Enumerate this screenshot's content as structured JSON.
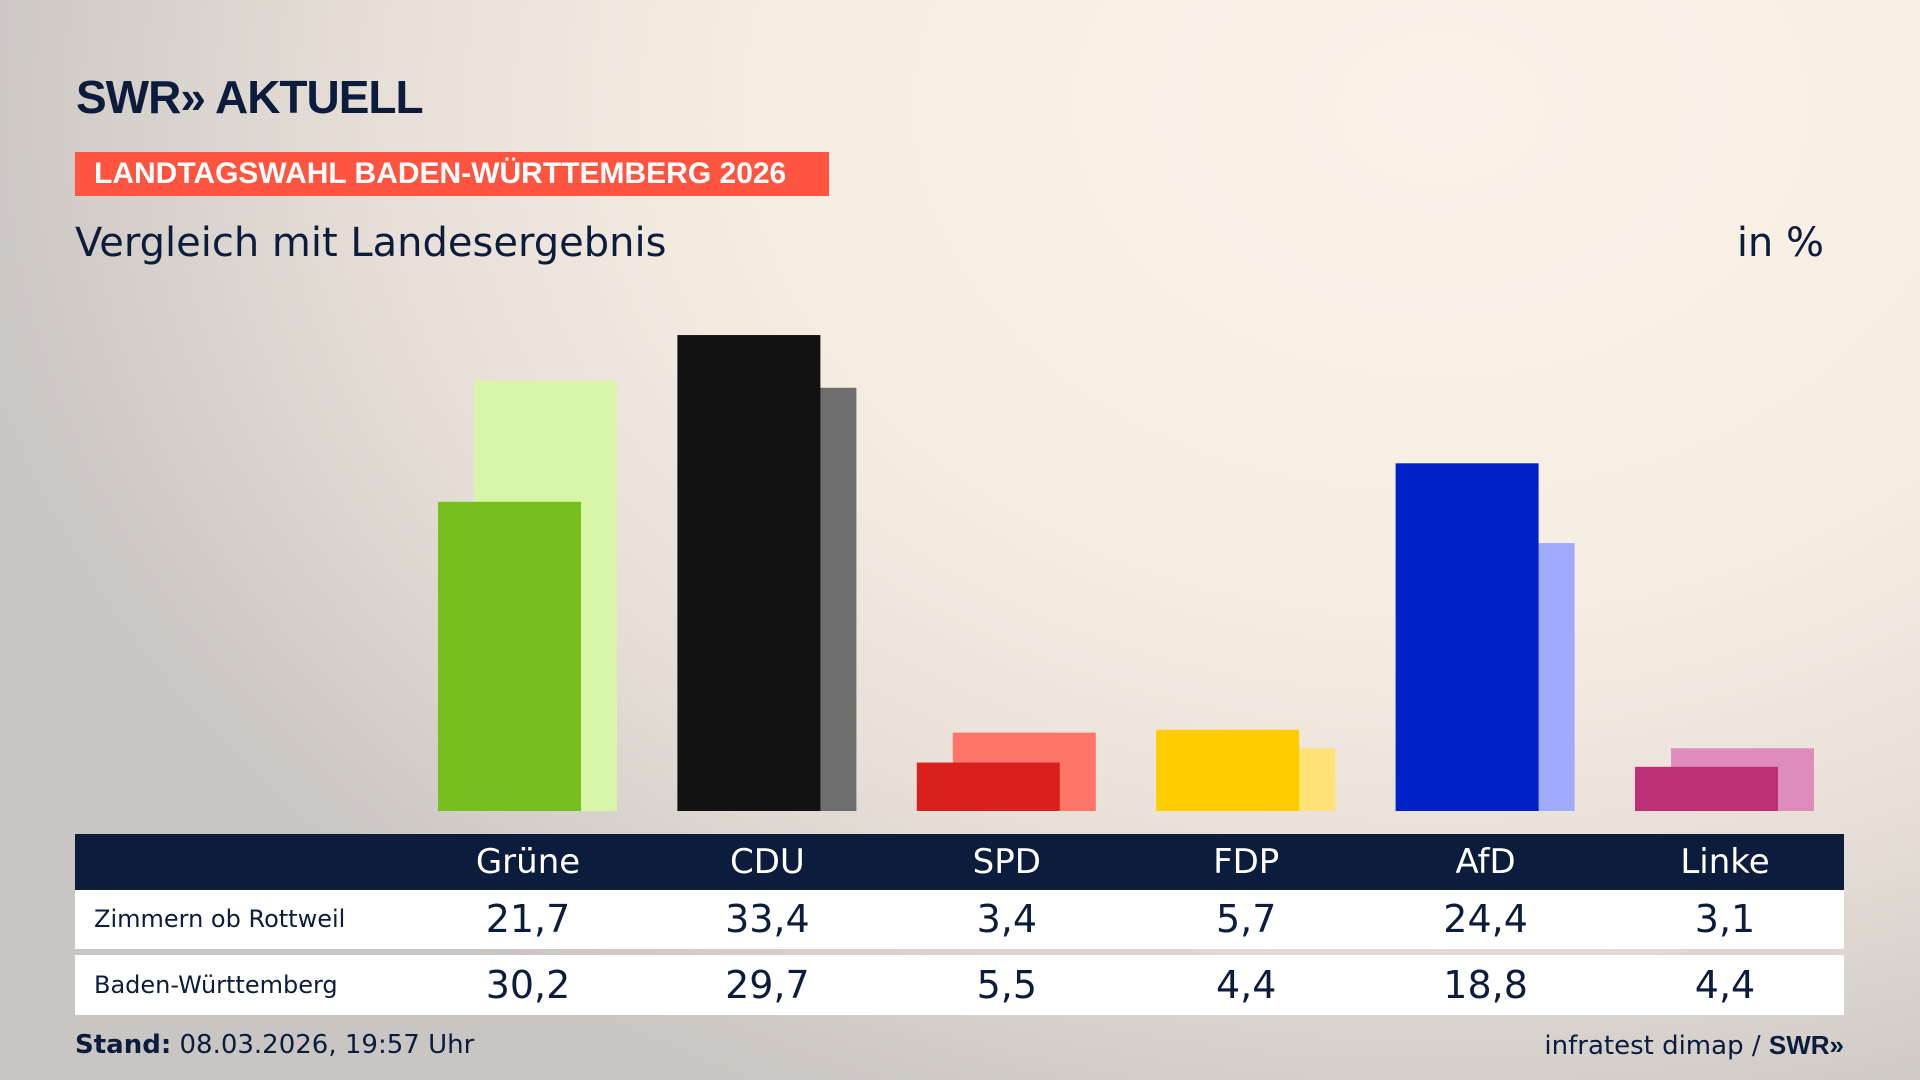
{
  "header": {
    "logo": "SWR» AKTUELL",
    "banner": "LANDTAGSWAHL BADEN-WÜRTTEMBERG 2026",
    "subtitle": "Vergleich mit Landesergebnis",
    "unit": "in %"
  },
  "chart_data": {
    "type": "bar",
    "title": "Vergleich mit Landesergebnis",
    "ylabel": "in %",
    "categories": [
      "Grüne",
      "CDU",
      "SPD",
      "FDP",
      "AfD",
      "Linke"
    ],
    "series": [
      {
        "name": "Zimmern ob Rottweil",
        "values": [
          21.7,
          33.4,
          3.4,
          5.7,
          24.4,
          3.1
        ],
        "colors": [
          "#78be1e",
          "#121212",
          "#d8201c",
          "#ffcc00",
          "#0021c8",
          "#be3075"
        ]
      },
      {
        "name": "Baden-Württemberg",
        "values": [
          30.2,
          29.7,
          5.5,
          4.4,
          18.8,
          4.4
        ],
        "colors": [
          "#d8f5a8",
          "#6e6e6e",
          "#ff7669",
          "#ffe27a",
          "#9eaafc",
          "#de8cbc"
        ]
      }
    ],
    "ylim": [
      0,
      35
    ],
    "grid": false
  },
  "table": {
    "rows": [
      {
        "label": "Zimmern ob Rottweil",
        "values": [
          "21,7",
          "33,4",
          "3,4",
          "5,7",
          "24,4",
          "3,1"
        ]
      },
      {
        "label": "Baden-Württemberg",
        "values": [
          "30,2",
          "29,7",
          "5,5",
          "4,4",
          "18,8",
          "4,4"
        ]
      }
    ]
  },
  "footer": {
    "stand_label": "Stand:",
    "stand_value": "08.03.2026, 19:57 Uhr",
    "source": "infratest dimap /",
    "source_logo": "SWR»"
  },
  "colors": {
    "navy": "#0c1c3c",
    "banner": "#ff5440"
  }
}
